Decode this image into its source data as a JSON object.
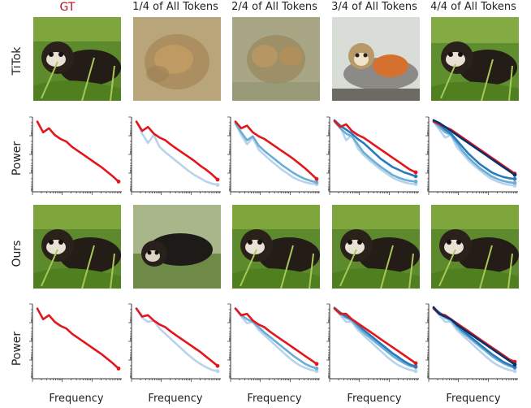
{
  "columns": [
    "GT",
    "1/4 of All Tokens",
    "2/4 of All Tokens",
    "3/4 of All Tokens",
    "4/4 of All Tokens"
  ],
  "row_labels": {
    "titok": "TiTok",
    "power": "Power",
    "ours": "Ours"
  },
  "xlabel": "Frequency",
  "images": {
    "titok": [
      "ferret-gt",
      "blurry-brown-blob",
      "blurry-brown-blob-2",
      "squirrel-monkey",
      "ferret"
    ],
    "ours": [
      "ferret-gt",
      "ferret-variant",
      "ferret",
      "ferret",
      "ferret"
    ]
  },
  "colors": {
    "gt": "#e3161b",
    "quarter1": "#b8d3eb",
    "quarter2": "#6aaed6",
    "quarter3": "#2b7bba",
    "quarter4": "#0b2f6b"
  },
  "chart_data": [
    {
      "type": "line",
      "row": "titok",
      "xlabel": "",
      "ylabel": "Power",
      "scale": "log-log",
      "series": [
        {
          "color": "#e3161b",
          "values": [
            0.02,
            0.18,
            0.12,
            0.22,
            0.28,
            0.32,
            0.4,
            0.46,
            0.52,
            0.58,
            0.64,
            0.7,
            0.77,
            0.84,
            0.92
          ]
        }
      ]
    },
    {
      "type": "line",
      "row": "titok",
      "ylabel": "",
      "series": [
        {
          "color": "#b8d3eb",
          "values": [
            0.02,
            0.2,
            0.34,
            0.22,
            0.4,
            0.48,
            0.55,
            0.62,
            0.69,
            0.76,
            0.82,
            0.87,
            0.92,
            0.95,
            0.97
          ]
        },
        {
          "color": "#e3161b",
          "values": [
            0.02,
            0.16,
            0.1,
            0.2,
            0.26,
            0.3,
            0.37,
            0.43,
            0.49,
            0.55,
            0.61,
            0.68,
            0.74,
            0.81,
            0.89
          ]
        }
      ]
    },
    {
      "type": "line",
      "row": "titok",
      "ylabel": "",
      "series": [
        {
          "color": "#b8d3eb",
          "values": [
            0.05,
            0.22,
            0.36,
            0.26,
            0.44,
            0.52,
            0.6,
            0.67,
            0.74,
            0.8,
            0.86,
            0.9,
            0.93,
            0.95,
            0.96
          ]
        },
        {
          "color": "#6aaed6",
          "values": [
            0.04,
            0.18,
            0.3,
            0.24,
            0.38,
            0.46,
            0.53,
            0.6,
            0.67,
            0.73,
            0.79,
            0.84,
            0.88,
            0.91,
            0.93
          ]
        },
        {
          "color": "#e3161b",
          "values": [
            0.02,
            0.12,
            0.08,
            0.18,
            0.24,
            0.28,
            0.34,
            0.4,
            0.46,
            0.52,
            0.58,
            0.65,
            0.72,
            0.8,
            0.88
          ]
        }
      ]
    },
    {
      "type": "line",
      "row": "titok",
      "ylabel": "",
      "series": [
        {
          "color": "#b8d3eb",
          "values": [
            0.02,
            0.1,
            0.3,
            0.22,
            0.42,
            0.52,
            0.6,
            0.67,
            0.74,
            0.8,
            0.86,
            0.9,
            0.93,
            0.95,
            0.96
          ]
        },
        {
          "color": "#6aaed6",
          "values": [
            0.02,
            0.12,
            0.2,
            0.24,
            0.36,
            0.48,
            0.56,
            0.63,
            0.7,
            0.76,
            0.82,
            0.86,
            0.89,
            0.91,
            0.92
          ]
        },
        {
          "color": "#2b7bba",
          "values": [
            0.0,
            0.08,
            0.14,
            0.2,
            0.28,
            0.34,
            0.42,
            0.5,
            0.58,
            0.64,
            0.7,
            0.74,
            0.78,
            0.81,
            0.84
          ]
        },
        {
          "color": "#e3161b",
          "values": [
            0.01,
            0.1,
            0.06,
            0.16,
            0.22,
            0.26,
            0.32,
            0.38,
            0.44,
            0.5,
            0.56,
            0.62,
            0.68,
            0.74,
            0.78
          ]
        }
      ]
    },
    {
      "type": "line",
      "row": "titok",
      "ylabel": "",
      "series": [
        {
          "color": "#b8d3eb",
          "values": [
            0.02,
            0.14,
            0.26,
            0.22,
            0.4,
            0.5,
            0.6,
            0.68,
            0.75,
            0.82,
            0.88,
            0.92,
            0.95,
            0.97,
            0.98
          ]
        },
        {
          "color": "#6aaed6",
          "values": [
            0.02,
            0.1,
            0.18,
            0.22,
            0.34,
            0.46,
            0.56,
            0.64,
            0.72,
            0.78,
            0.84,
            0.88,
            0.91,
            0.93,
            0.94
          ]
        },
        {
          "color": "#2b7bba",
          "values": [
            0.0,
            0.06,
            0.14,
            0.2,
            0.3,
            0.4,
            0.5,
            0.58,
            0.66,
            0.72,
            0.78,
            0.82,
            0.85,
            0.87,
            0.88
          ]
        },
        {
          "color": "#e3161b",
          "values": [
            0.02,
            0.06,
            0.1,
            0.14,
            0.2,
            0.26,
            0.32,
            0.38,
            0.44,
            0.5,
            0.56,
            0.62,
            0.68,
            0.74,
            0.8
          ]
        },
        {
          "color": "#0b2f6b",
          "values": [
            0.0,
            0.04,
            0.1,
            0.16,
            0.22,
            0.28,
            0.34,
            0.4,
            0.46,
            0.52,
            0.58,
            0.64,
            0.7,
            0.76,
            0.82
          ]
        }
      ]
    },
    {
      "type": "line",
      "row": "ours",
      "xlabel": "Frequency",
      "ylabel": "Power",
      "series": [
        {
          "color": "#e3161b",
          "values": [
            0.02,
            0.18,
            0.12,
            0.22,
            0.28,
            0.32,
            0.4,
            0.46,
            0.52,
            0.58,
            0.64,
            0.7,
            0.77,
            0.84,
            0.92
          ]
        }
      ]
    },
    {
      "type": "line",
      "row": "ours",
      "xlabel": "Frequency",
      "ylabel": "",
      "series": [
        {
          "color": "#b8d3eb",
          "values": [
            0.02,
            0.16,
            0.22,
            0.2,
            0.32,
            0.4,
            0.48,
            0.56,
            0.64,
            0.72,
            0.79,
            0.85,
            0.9,
            0.94,
            0.96
          ]
        },
        {
          "color": "#e3161b",
          "values": [
            0.02,
            0.14,
            0.12,
            0.2,
            0.26,
            0.3,
            0.37,
            0.43,
            0.49,
            0.55,
            0.61,
            0.67,
            0.74,
            0.81,
            0.88
          ]
        }
      ]
    },
    {
      "type": "line",
      "row": "ours",
      "xlabel": "Frequency",
      "ylabel": "",
      "series": [
        {
          "color": "#b8d3eb",
          "values": [
            0.02,
            0.14,
            0.24,
            0.22,
            0.34,
            0.42,
            0.5,
            0.58,
            0.66,
            0.74,
            0.81,
            0.87,
            0.91,
            0.94,
            0.96
          ]
        },
        {
          "color": "#6aaed6",
          "values": [
            0.02,
            0.12,
            0.18,
            0.22,
            0.3,
            0.38,
            0.45,
            0.52,
            0.59,
            0.66,
            0.73,
            0.79,
            0.85,
            0.89,
            0.92
          ]
        },
        {
          "color": "#e3161b",
          "values": [
            0.02,
            0.12,
            0.1,
            0.2,
            0.26,
            0.3,
            0.37,
            0.43,
            0.49,
            0.55,
            0.61,
            0.67,
            0.73,
            0.79,
            0.85
          ]
        }
      ]
    },
    {
      "type": "line",
      "row": "ours",
      "xlabel": "Frequency",
      "ylabel": "",
      "series": [
        {
          "color": "#b8d3eb",
          "values": [
            0.02,
            0.12,
            0.22,
            0.22,
            0.34,
            0.42,
            0.5,
            0.58,
            0.66,
            0.74,
            0.81,
            0.87,
            0.91,
            0.94,
            0.96
          ]
        },
        {
          "color": "#6aaed6",
          "values": [
            0.02,
            0.1,
            0.16,
            0.2,
            0.3,
            0.38,
            0.45,
            0.52,
            0.59,
            0.66,
            0.73,
            0.79,
            0.84,
            0.88,
            0.9
          ]
        },
        {
          "color": "#2b7bba",
          "values": [
            0.01,
            0.08,
            0.14,
            0.18,
            0.26,
            0.34,
            0.41,
            0.48,
            0.55,
            0.62,
            0.69,
            0.75,
            0.81,
            0.86,
            0.89
          ]
        },
        {
          "color": "#e3161b",
          "values": [
            0.02,
            0.1,
            0.1,
            0.18,
            0.24,
            0.3,
            0.36,
            0.42,
            0.48,
            0.54,
            0.6,
            0.66,
            0.72,
            0.78,
            0.84
          ]
        }
      ]
    },
    {
      "type": "line",
      "row": "ours",
      "xlabel": "Frequency",
      "ylabel": "",
      "series": [
        {
          "color": "#b8d3eb",
          "values": [
            0.02,
            0.12,
            0.22,
            0.22,
            0.34,
            0.42,
            0.5,
            0.58,
            0.66,
            0.74,
            0.81,
            0.87,
            0.91,
            0.94,
            0.96
          ]
        },
        {
          "color": "#6aaed6",
          "values": [
            0.02,
            0.1,
            0.16,
            0.2,
            0.3,
            0.38,
            0.45,
            0.52,
            0.59,
            0.66,
            0.73,
            0.79,
            0.84,
            0.88,
            0.91
          ]
        },
        {
          "color": "#2b7bba",
          "values": [
            0.01,
            0.08,
            0.14,
            0.18,
            0.27,
            0.35,
            0.42,
            0.49,
            0.56,
            0.63,
            0.7,
            0.76,
            0.82,
            0.86,
            0.9
          ]
        },
        {
          "color": "#e3161b",
          "values": [
            0.02,
            0.1,
            0.12,
            0.18,
            0.24,
            0.3,
            0.36,
            0.42,
            0.48,
            0.54,
            0.6,
            0.66,
            0.72,
            0.78,
            0.82
          ]
        },
        {
          "color": "#0b2f6b",
          "values": [
            0.0,
            0.1,
            0.14,
            0.18,
            0.26,
            0.32,
            0.38,
            0.44,
            0.5,
            0.56,
            0.62,
            0.68,
            0.74,
            0.8,
            0.86
          ]
        }
      ]
    }
  ]
}
